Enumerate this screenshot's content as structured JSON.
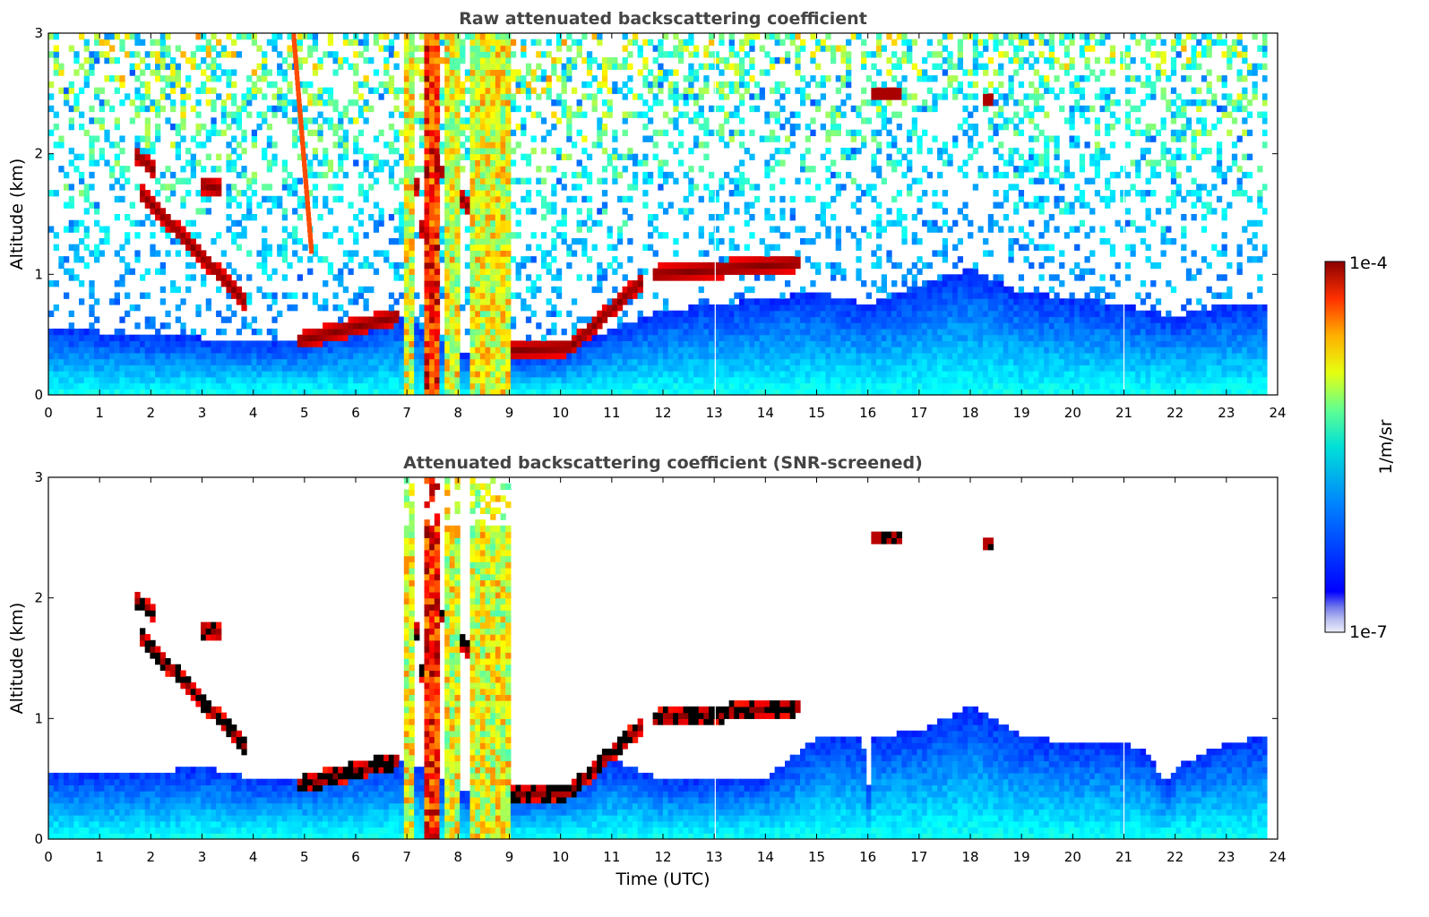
{
  "chart_data": [
    {
      "type": "heatmap",
      "title": "Raw attenuated backscattering coefficient",
      "xlabel": "",
      "ylabel": "Altitude (km)",
      "xlim": [
        0,
        24
      ],
      "ylim": [
        0,
        3
      ],
      "xticks": [
        0,
        1,
        2,
        3,
        4,
        5,
        6,
        7,
        8,
        9,
        10,
        11,
        12,
        13,
        14,
        15,
        16,
        17,
        18,
        19,
        20,
        21,
        22,
        23,
        24
      ],
      "yticks": [
        0,
        1,
        2,
        3
      ],
      "colorscale": "jet",
      "color_range": [
        "1e-7",
        "1e-4"
      ],
      "color_unit": "1/m/sr",
      "features": {
        "boundary_layer_top_km": [
          [
            0,
            0.55
          ],
          [
            2,
            0.5
          ],
          [
            4,
            0.45
          ],
          [
            5,
            0.45
          ],
          [
            6,
            0.55
          ],
          [
            7,
            0.65
          ],
          [
            8,
            0.35
          ],
          [
            9,
            0.3
          ],
          [
            10,
            0.35
          ],
          [
            11,
            0.55
          ],
          [
            12,
            0.7
          ],
          [
            14,
            0.8
          ],
          [
            15,
            0.85
          ],
          [
            16,
            0.75
          ],
          [
            17,
            0.9
          ],
          [
            18,
            1.05
          ],
          [
            19,
            0.85
          ],
          [
            20,
            0.8
          ],
          [
            21,
            0.75
          ],
          [
            22,
            0.65
          ],
          [
            23,
            0.75
          ],
          [
            23.8,
            0.75
          ]
        ],
        "cloud_layers": [
          {
            "t_start": 1.75,
            "t_end": 3.9,
            "alt_start_km": 1.7,
            "alt_end_km": 0.75
          },
          {
            "t_start": 1.7,
            "t_end": 2.1,
            "alt_start_km": 2.0,
            "alt_end_km": 1.85
          },
          {
            "t_start": 3.0,
            "t_end": 3.4,
            "alt_start_km": 1.75,
            "alt_end_km": 1.7
          },
          {
            "t_start": 4.9,
            "t_end": 6.8,
            "alt_start_km": 0.45,
            "alt_end_km": 0.65
          },
          {
            "t_start": 7.0,
            "t_end": 7.6,
            "alt_start_km": 2.4,
            "alt_end_km": 0.3
          },
          {
            "t_start": 7.6,
            "t_end": 8.3,
            "alt_start_km": 1.9,
            "alt_end_km": 1.5
          },
          {
            "t_start": 8.2,
            "t_end": 10.2,
            "alt_start_km": 0.35,
            "alt_end_km": 0.4
          },
          {
            "t_start": 10.2,
            "t_end": 11.6,
            "alt_start_km": 0.4,
            "alt_end_km": 0.95
          },
          {
            "t_start": 11.8,
            "t_end": 14.7,
            "alt_start_km": 1.0,
            "alt_end_km": 1.1
          },
          {
            "t_start": 16.1,
            "t_end": 16.7,
            "alt_start_km": 2.5,
            "alt_end_km": 2.5
          },
          {
            "t_start": 18.2,
            "t_end": 18.4,
            "alt_start_km": 2.45,
            "alt_end_km": 2.45
          }
        ],
        "rain_columns_utc": [
          [
            6.95,
            7.15
          ],
          [
            7.35,
            7.6
          ],
          [
            7.75,
            8.0
          ],
          [
            8.2,
            9.05
          ]
        ],
        "data_gaps_utc": [
          13.02,
          21.0
        ],
        "data_end_utc": 23.8
      }
    },
    {
      "type": "heatmap",
      "title": "Attenuated backscattering coefficient (SNR-screened)",
      "xlabel": "Time (UTC)",
      "ylabel": "Altitude (km)",
      "xlim": [
        0,
        24
      ],
      "ylim": [
        0,
        3
      ],
      "xticks": [
        0,
        1,
        2,
        3,
        4,
        5,
        6,
        7,
        8,
        9,
        10,
        11,
        12,
        13,
        14,
        15,
        16,
        17,
        18,
        19,
        20,
        21,
        22,
        23,
        24
      ],
      "yticks": [
        0,
        1,
        2,
        3
      ],
      "colorscale": "jet",
      "color_range": [
        "1e-7",
        "1e-4"
      ],
      "color_unit": "1/m/sr",
      "features": {
        "screened_top_km": [
          [
            0,
            0.55
          ],
          [
            2,
            0.55
          ],
          [
            3,
            0.6
          ],
          [
            4,
            0.5
          ],
          [
            5,
            0.5
          ],
          [
            6,
            0.6
          ],
          [
            7,
            0.65
          ],
          [
            8,
            0.4
          ],
          [
            9,
            0.35
          ],
          [
            10,
            0.4
          ],
          [
            11,
            0.65
          ],
          [
            12,
            0.5
          ],
          [
            14,
            0.5
          ],
          [
            15,
            0.85
          ],
          [
            15.9,
            0.85
          ],
          [
            16.0,
            0.35
          ],
          [
            16.1,
            0.85
          ],
          [
            17,
            0.9
          ],
          [
            18,
            1.1
          ],
          [
            19,
            0.85
          ],
          [
            20,
            0.8
          ],
          [
            21,
            0.8
          ],
          [
            21.5,
            0.7
          ],
          [
            21.8,
            0.45
          ],
          [
            22,
            0.6
          ],
          [
            23,
            0.8
          ],
          [
            23.8,
            0.85
          ]
        ],
        "data_gaps_utc": [
          13.02,
          21.0
        ],
        "data_end_utc": 23.8
      }
    }
  ],
  "colorbar": {
    "max_label": "1e-4",
    "min_label": "1e-7",
    "unit_label": "1/m/sr"
  }
}
